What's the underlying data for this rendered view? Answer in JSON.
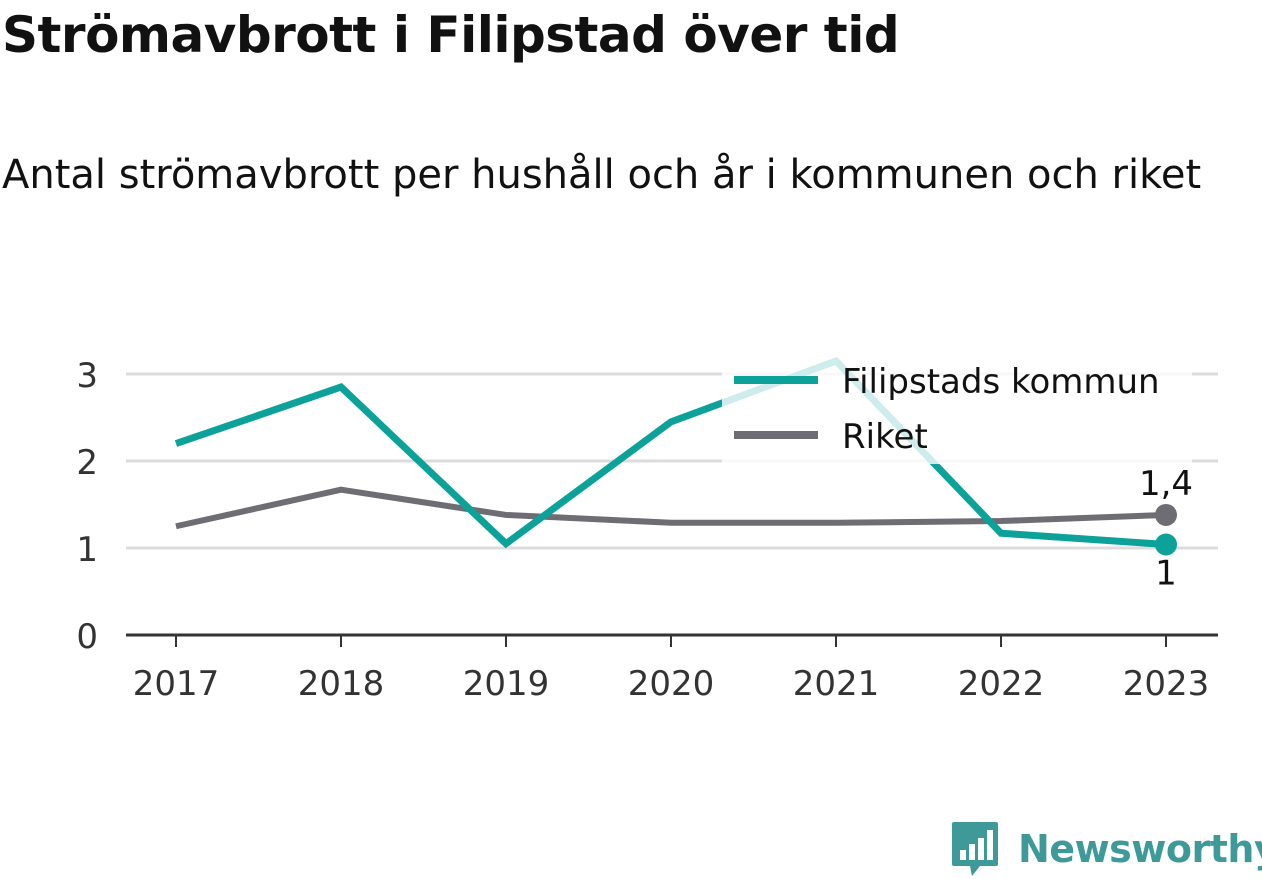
{
  "colors": {
    "filipstad": "#0ca29a",
    "riket": "#6e6d73",
    "grid": "#dcdcdc",
    "axis": "#333333",
    "brand": "#3e9a98"
  },
  "brand": {
    "name": "Newsworthy",
    "icon": "newsworthy-bar-chart-logo-icon"
  },
  "chart_data": {
    "type": "line",
    "title": "Strömavbrott i Filipstad över tid",
    "subtitle": "Antal strömavbrott per hushåll och år i kommunen och riket",
    "x": [
      "2017",
      "2018",
      "2019",
      "2020",
      "2021",
      "2022",
      "2023"
    ],
    "series": [
      {
        "name": "Filipstads kommun",
        "color": "#0ca29a",
        "values": [
          2.2,
          2.85,
          1.05,
          2.45,
          3.15,
          1.17,
          1.04
        ],
        "end_label": "1"
      },
      {
        "name": "Riket",
        "color": "#6e6d73",
        "values": [
          1.25,
          1.67,
          1.38,
          1.29,
          1.29,
          1.31,
          1.38
        ],
        "end_label": "1,4"
      }
    ],
    "ylim": [
      0,
      3
    ],
    "yticks": [
      "0",
      "1",
      "2",
      "3"
    ],
    "grid": true,
    "legend": "top-right"
  }
}
